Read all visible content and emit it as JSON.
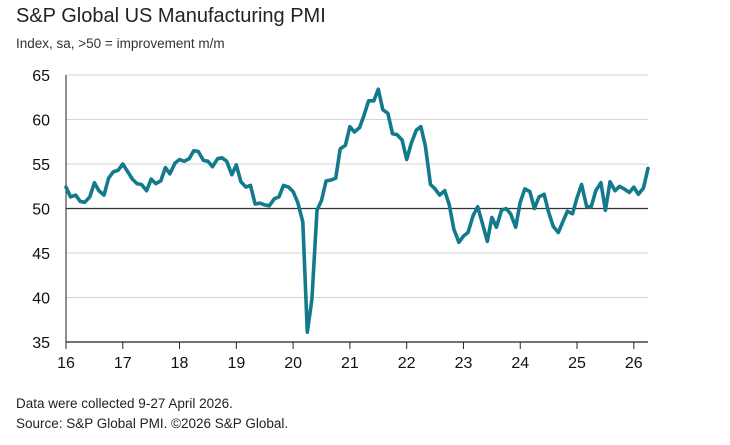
{
  "chart_data": {
    "type": "line",
    "title": "S&P Global US Manufacturing PMI",
    "subtitle": "Index, sa, >50 = improvement m/m",
    "xlabel": "",
    "ylabel": "",
    "ylim": [
      35,
      65
    ],
    "y_ticks": [
      35,
      40,
      45,
      50,
      55,
      60,
      65
    ],
    "reference_line": 50,
    "x_tick_labels": [
      "16",
      "17",
      "18",
      "19",
      "20",
      "21",
      "22",
      "23",
      "24",
      "25",
      "26"
    ],
    "xlim": [
      2016,
      2026.25
    ],
    "grid": "horizontal",
    "series": [
      {
        "color": "#127a8c",
        "x": [
          2016.0,
          2016.08,
          2016.17,
          2016.25,
          2016.33,
          2016.42,
          2016.5,
          2016.58,
          2016.67,
          2016.75,
          2016.83,
          2016.92,
          2017.0,
          2017.08,
          2017.17,
          2017.25,
          2017.33,
          2017.42,
          2017.5,
          2017.58,
          2017.67,
          2017.75,
          2017.83,
          2017.92,
          2018.0,
          2018.08,
          2018.17,
          2018.25,
          2018.33,
          2018.42,
          2018.5,
          2018.58,
          2018.67,
          2018.75,
          2018.83,
          2018.92,
          2019.0,
          2019.08,
          2019.17,
          2019.25,
          2019.33,
          2019.42,
          2019.5,
          2019.58,
          2019.67,
          2019.75,
          2019.83,
          2019.92,
          2020.0,
          2020.08,
          2020.17,
          2020.25,
          2020.33,
          2020.42,
          2020.5,
          2020.58,
          2020.67,
          2020.75,
          2020.83,
          2020.92,
          2021.0,
          2021.08,
          2021.17,
          2021.25,
          2021.33,
          2021.42,
          2021.5,
          2021.58,
          2021.67,
          2021.75,
          2021.83,
          2021.92,
          2022.0,
          2022.08,
          2022.17,
          2022.25,
          2022.33,
          2022.42,
          2022.5,
          2022.58,
          2022.67,
          2022.75,
          2022.83,
          2022.92,
          2023.0,
          2023.08,
          2023.17,
          2023.25,
          2023.33,
          2023.42,
          2023.5,
          2023.58,
          2023.67,
          2023.75,
          2023.83,
          2023.92,
          2024.0,
          2024.08,
          2024.17,
          2024.25,
          2024.33,
          2024.42,
          2024.5,
          2024.58,
          2024.67,
          2024.75,
          2024.83,
          2024.92,
          2025.0,
          2025.08,
          2025.17,
          2025.25,
          2025.33,
          2025.42,
          2025.5,
          2025.58,
          2025.67,
          2025.75,
          2025.83,
          2025.92,
          2026.0,
          2026.08,
          2026.17,
          2026.25
        ],
        "values": [
          52.4,
          51.3,
          51.5,
          50.8,
          50.7,
          51.3,
          52.9,
          52.0,
          51.5,
          53.4,
          54.1,
          54.3,
          55.0,
          54.2,
          53.3,
          52.8,
          52.7,
          52.0,
          53.3,
          52.8,
          53.1,
          54.6,
          53.9,
          55.1,
          55.5,
          55.3,
          55.6,
          56.5,
          56.4,
          55.4,
          55.3,
          54.7,
          55.6,
          55.7,
          55.3,
          53.8,
          54.9,
          53.0,
          52.4,
          52.6,
          50.5,
          50.6,
          50.4,
          50.3,
          51.1,
          51.3,
          52.6,
          52.4,
          51.9,
          50.7,
          48.5,
          36.1,
          39.8,
          49.8,
          50.9,
          53.1,
          53.2,
          53.4,
          56.7,
          57.1,
          59.2,
          58.6,
          59.1,
          60.5,
          62.1,
          62.1,
          63.4,
          61.1,
          60.7,
          58.4,
          58.3,
          57.7,
          55.5,
          57.3,
          58.8,
          59.2,
          57.0,
          52.7,
          52.2,
          51.5,
          52.0,
          50.4,
          47.7,
          46.2,
          46.9,
          47.3,
          49.2,
          50.2,
          48.4,
          46.3,
          49.0,
          47.9,
          49.8,
          50.0,
          49.4,
          47.9,
          50.7,
          52.2,
          51.9,
          50.0,
          51.3,
          51.6,
          49.6,
          48.0,
          47.3,
          48.5,
          49.7,
          49.4,
          51.2,
          52.7,
          50.2,
          50.2,
          52.0,
          52.9,
          49.8,
          53.0,
          52.0,
          52.5,
          52.2,
          51.8,
          52.4,
          51.6,
          52.3,
          54.5
        ]
      }
    ]
  },
  "notes": {
    "collection": "Data were collected 9-27 April 2026.",
    "source": "Source: S&P Global PMI. ©2026 S&P Global."
  }
}
